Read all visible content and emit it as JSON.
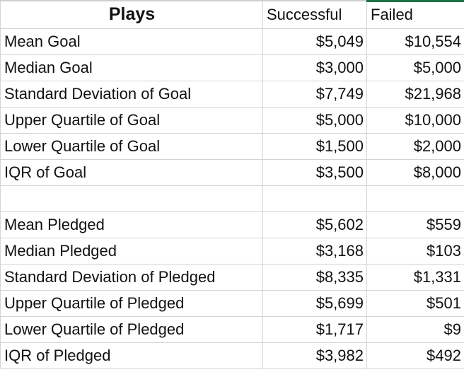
{
  "header": {
    "title": "Plays",
    "col_successful": "Successful",
    "col_failed": "Failed"
  },
  "goal_rows": [
    {
      "label": "Mean Goal",
      "successful": "$5,049",
      "failed": "$10,554"
    },
    {
      "label": "Median Goal",
      "successful": "$3,000",
      "failed": "$5,000"
    },
    {
      "label": "Standard Deviation of Goal",
      "successful": "$7,749",
      "failed": "$21,968"
    },
    {
      "label": "Upper Quartile of Goal",
      "successful": "$5,000",
      "failed": "$10,000"
    },
    {
      "label": "Lower Quartile of Goal",
      "successful": "$1,500",
      "failed": "$2,000"
    },
    {
      "label": "IQR of Goal",
      "successful": "$3,500",
      "failed": "$8,000"
    }
  ],
  "pledged_rows": [
    {
      "label": "Mean Pledged",
      "successful": "$5,602",
      "failed": "$559"
    },
    {
      "label": "Median Pledged",
      "successful": "$3,168",
      "failed": "$103"
    },
    {
      "label": "Standard Deviation of Pledged",
      "successful": "$8,335",
      "failed": "$1,331"
    },
    {
      "label": "Upper Quartile of Pledged",
      "successful": "$5,699",
      "failed": "$501"
    },
    {
      "label": "Lower Quartile of Pledged",
      "successful": "$1,717",
      "failed": "$9"
    },
    {
      "label": "IQR of Pledged",
      "successful": "$3,982",
      "failed": "$492"
    }
  ],
  "colors": {
    "selection_accent": "#1e7145",
    "gridline": "#d4d4d4"
  }
}
